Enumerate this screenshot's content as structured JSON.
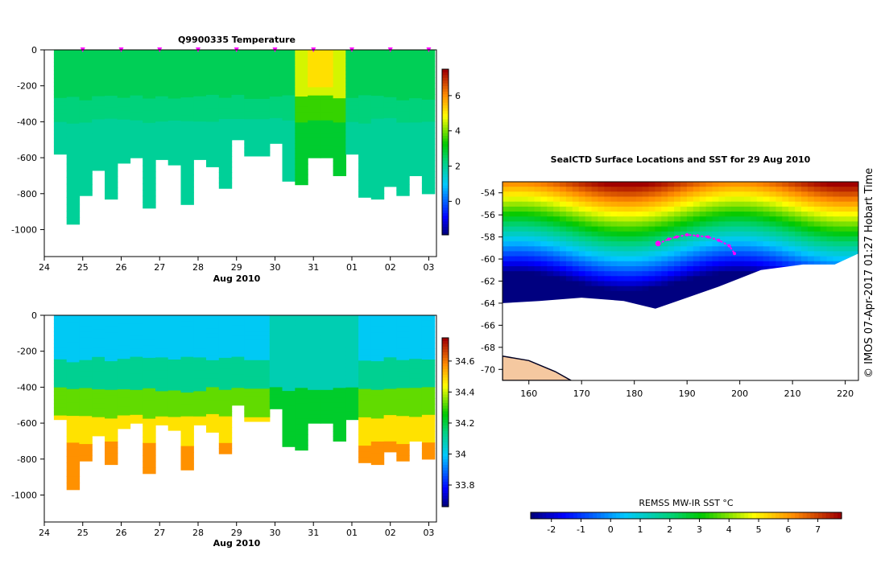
{
  "chart_data": [
    {
      "type": "heatmap",
      "title": "Q9900335  Temperature",
      "xlabel": "Aug 2010",
      "xticks": [
        "24",
        "25",
        "26",
        "27",
        "28",
        "29",
        "30",
        "31",
        "01",
        "02",
        "03"
      ],
      "yticks": [
        "0",
        "-200",
        "-400",
        "-600",
        "-800",
        "-1000"
      ],
      "ylim": [
        -1150,
        0
      ],
      "colorbar": {
        "ticks": [
          "0",
          "2",
          "4",
          "6"
        ],
        "range": [
          -1.9,
          7.5
        ]
      },
      "profile_times_days": [
        0.3,
        0.6,
        0.9,
        1.2,
        1.5,
        1.8,
        2.1,
        2.4,
        2.7,
        3.0,
        3.3,
        3.6,
        3.9,
        4.2,
        4.5,
        4.8,
        5.1,
        5.4,
        5.7,
        6.0,
        6.3,
        6.6,
        6.9,
        7.2,
        7.5,
        7.8,
        8.1,
        8.4,
        8.7,
        9.0
      ],
      "profile_max_depth_m": [
        -580,
        -970,
        -810,
        -670,
        -830,
        -630,
        -600,
        -880,
        -610,
        -640,
        -860,
        -610,
        -650,
        -770,
        -500,
        -590,
        -590,
        -520,
        -730,
        -750,
        -600,
        -600,
        -700,
        -580,
        -820,
        -830,
        -760,
        -810,
        -700,
        -800
      ],
      "surface_markers_days": [
        1,
        2,
        3,
        4,
        5,
        6,
        7,
        8,
        9,
        10
      ]
    },
    {
      "type": "heatmap",
      "title": "",
      "xlabel": "Aug 2010",
      "xticks": [
        "24",
        "25",
        "26",
        "27",
        "28",
        "29",
        "30",
        "31",
        "01",
        "02",
        "03"
      ],
      "yticks": [
        "0",
        "-200",
        "-400",
        "-600",
        "-800",
        "-1000"
      ],
      "ylim": [
        -1150,
        0
      ],
      "colorbar": {
        "ticks": [
          "33.8",
          "34",
          "34.2",
          "34.4",
          "34.6"
        ],
        "range": [
          33.66,
          34.75
        ]
      },
      "profile_max_depth_m": [
        -580,
        -970,
        -810,
        -670,
        -830,
        -630,
        -600,
        -880,
        -610,
        -640,
        -860,
        -610,
        -650,
        -770,
        -500,
        -590,
        -590,
        -520,
        -730,
        -750,
        -600,
        -600,
        -700,
        -580,
        -820,
        -830,
        -760,
        -810,
        -700,
        -800
      ]
    },
    {
      "type": "heatmap",
      "title": "SealCTD Surface Locations and SST for 29 Aug 2010",
      "xticks": [
        "160",
        "170",
        "180",
        "190",
        "200",
        "210",
        "220"
      ],
      "yticks": [
        "-54",
        "-56",
        "-58",
        "-60",
        "-62",
        "-64",
        "-66",
        "-68",
        "-70"
      ],
      "xlim": [
        155,
        222.5
      ],
      "ylim": [
        -71,
        -53
      ],
      "colorbar": {
        "label": "REMSS MW-IR SST °C",
        "ticks": [
          "-2",
          "-1",
          "0",
          "1",
          "2",
          "3",
          "4",
          "5",
          "6",
          "7"
        ],
        "range": [
          -2.7,
          7.8
        ]
      },
      "track_lonlat": [
        [
          184.5,
          -58.6
        ],
        [
          186.5,
          -58.2
        ],
        [
          188,
          -58.0
        ],
        [
          190,
          -57.8
        ],
        [
          192,
          -57.9
        ],
        [
          194,
          -58.0
        ],
        [
          196,
          -58.3
        ],
        [
          198,
          -58.8
        ],
        [
          199,
          -59.5
        ]
      ],
      "sidebar_text": "© IMOS 07-Apr-2017 01:27 Hobart Time"
    }
  ],
  "colors": {
    "marker": "#ff00ff",
    "land": "#f5c8a0",
    "ice": "#ffffff"
  }
}
